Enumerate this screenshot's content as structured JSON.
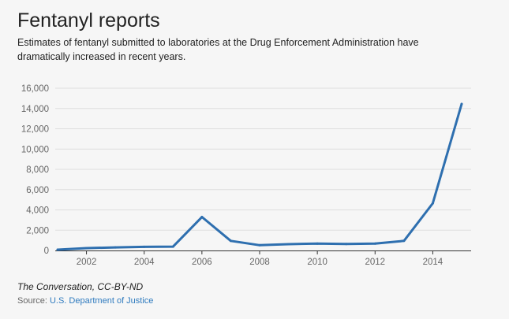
{
  "chart_data": {
    "type": "line",
    "title": "Fentanyl reports",
    "subtitle": "Estimates of fentanyl submitted to laboratories at the Drug Enforcement Administration have dramatically increased in recent years.",
    "xlabel": "",
    "ylabel": "",
    "x": [
      2001,
      2002,
      2003,
      2004,
      2005,
      2006,
      2007,
      2008,
      2009,
      2010,
      2011,
      2012,
      2013,
      2014,
      2015
    ],
    "series": [
      {
        "values": [
          80,
          230,
          300,
          360,
          380,
          3300,
          950,
          520,
          620,
          680,
          640,
          680,
          950,
          4650,
          14450
        ]
      }
    ],
    "xlim": [
      2001,
      2015
    ],
    "ylim": [
      0,
      16000
    ],
    "xticks": [
      2002,
      2004,
      2006,
      2008,
      2010,
      2012,
      2014
    ],
    "yticks": [
      0,
      2000,
      4000,
      6000,
      8000,
      10000,
      12000,
      14000,
      16000
    ],
    "ytick_labels": [
      "0",
      "2,000",
      "4,000",
      "6,000",
      "8,000",
      "10,000",
      "12,000",
      "14,000",
      "16,000"
    ],
    "grid": true,
    "legend": "none",
    "line_color": "#2e6faf",
    "grid_color": "#dddddd",
    "axis_color": "#333333"
  },
  "footer": {
    "credit": "The Conversation, CC-BY-ND",
    "source_label": "Source: ",
    "source_link": "U.S. Department of Justice"
  }
}
